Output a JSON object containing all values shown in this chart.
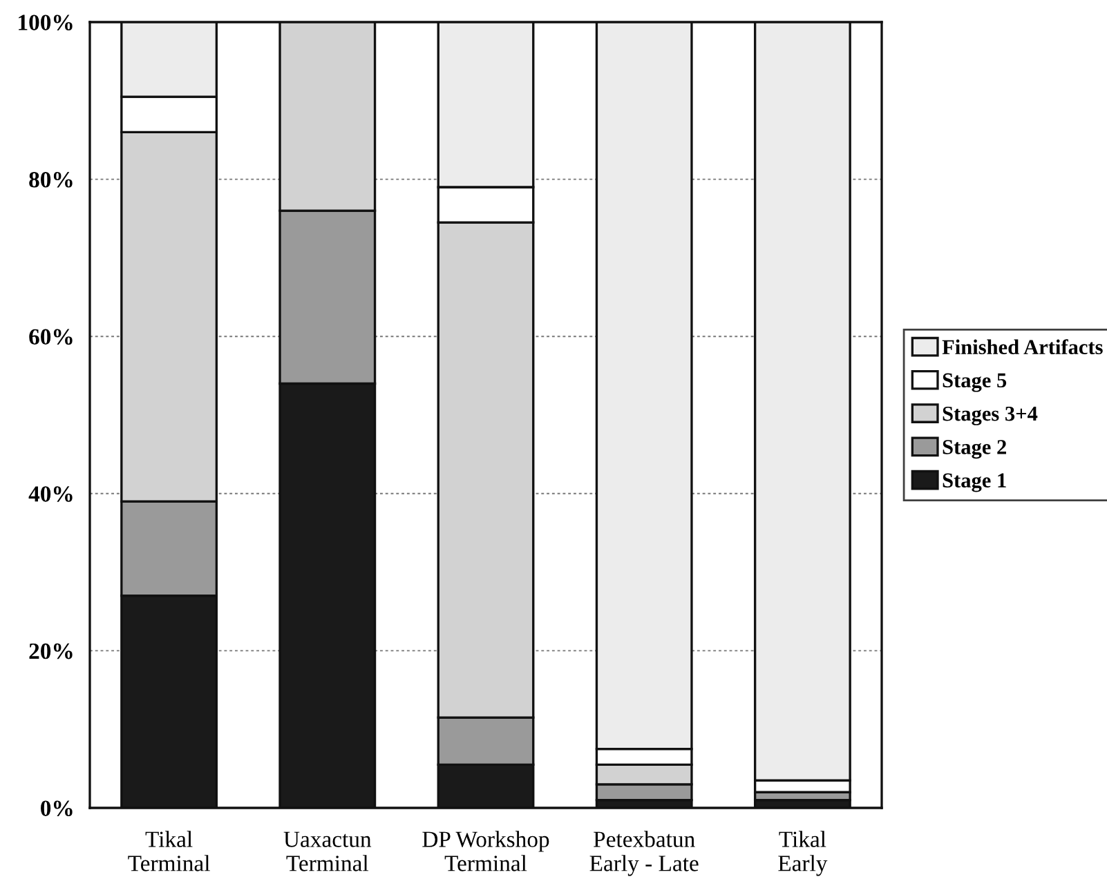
{
  "chart_data": {
    "type": "bar",
    "stacked": true,
    "categories": [
      "Tikal\nTerminal",
      "Uaxactun\nTerminal",
      "DP Workshop\nTerminal",
      "Petexbatun\nEarly - Late",
      "Tikal\nEarly"
    ],
    "series": [
      {
        "name": "Stage 1",
        "color": "#1a1a1a",
        "values": [
          27,
          54,
          5.5,
          1,
          1
        ]
      },
      {
        "name": "Stage 2",
        "color": "#9a9a9a",
        "values": [
          12,
          22,
          6,
          2,
          1
        ]
      },
      {
        "name": "Stages 3+4",
        "color": "#d2d2d2",
        "values": [
          47,
          24,
          63,
          2.5,
          0
        ]
      },
      {
        "name": "Stage 5",
        "color": "#ffffff",
        "values": [
          4.5,
          0,
          4.5,
          2,
          1.5
        ]
      },
      {
        "name": "Finished Artifacts",
        "color": "#ececec",
        "values": [
          9.5,
          0,
          21,
          92.5,
          96.5
        ]
      }
    ],
    "ylim": [
      0,
      100
    ],
    "yticks": [
      {
        "value": 0,
        "label": "0%"
      },
      {
        "value": 20,
        "label": "20%"
      },
      {
        "value": 40,
        "label": "40%"
      },
      {
        "value": 60,
        "label": "60%"
      },
      {
        "value": 80,
        "label": "80%"
      },
      {
        "value": 100,
        "label": "100%"
      }
    ],
    "grid": "y",
    "legend": "right"
  }
}
